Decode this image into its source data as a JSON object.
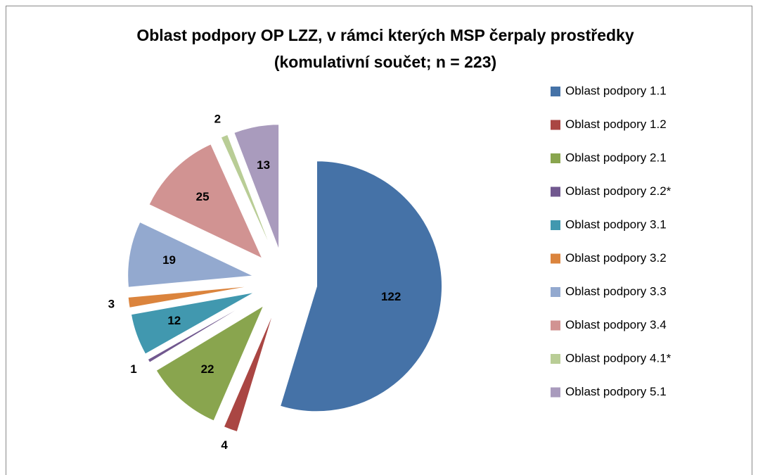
{
  "chart_data": {
    "type": "pie",
    "title": "Oblast podpory OP LZZ, v rámci kterých MSP čerpaly prostředky",
    "subtitle": "(komulativní součet; n = 223)",
    "categories": [
      "Oblast podpory 1.1",
      "Oblast podpory 1.2",
      "Oblast podpory 2.1",
      "Oblast podpory 2.2*",
      "Oblast podpory 3.1",
      "Oblast podpory 3.2",
      "Oblast podpory 3.3",
      "Oblast podpory 3.4",
      "Oblast podpory 4.1*",
      "Oblast podpory 5.1"
    ],
    "values": [
      122,
      4,
      22,
      1,
      12,
      3,
      19,
      25,
      2,
      13
    ],
    "colors": [
      "#4572A7",
      "#AA4643",
      "#89A54E",
      "#71588F",
      "#4198AF",
      "#DB843D",
      "#93A9CF",
      "#D19392",
      "#B9CD96",
      "#A99BBD"
    ],
    "legend": "right"
  }
}
